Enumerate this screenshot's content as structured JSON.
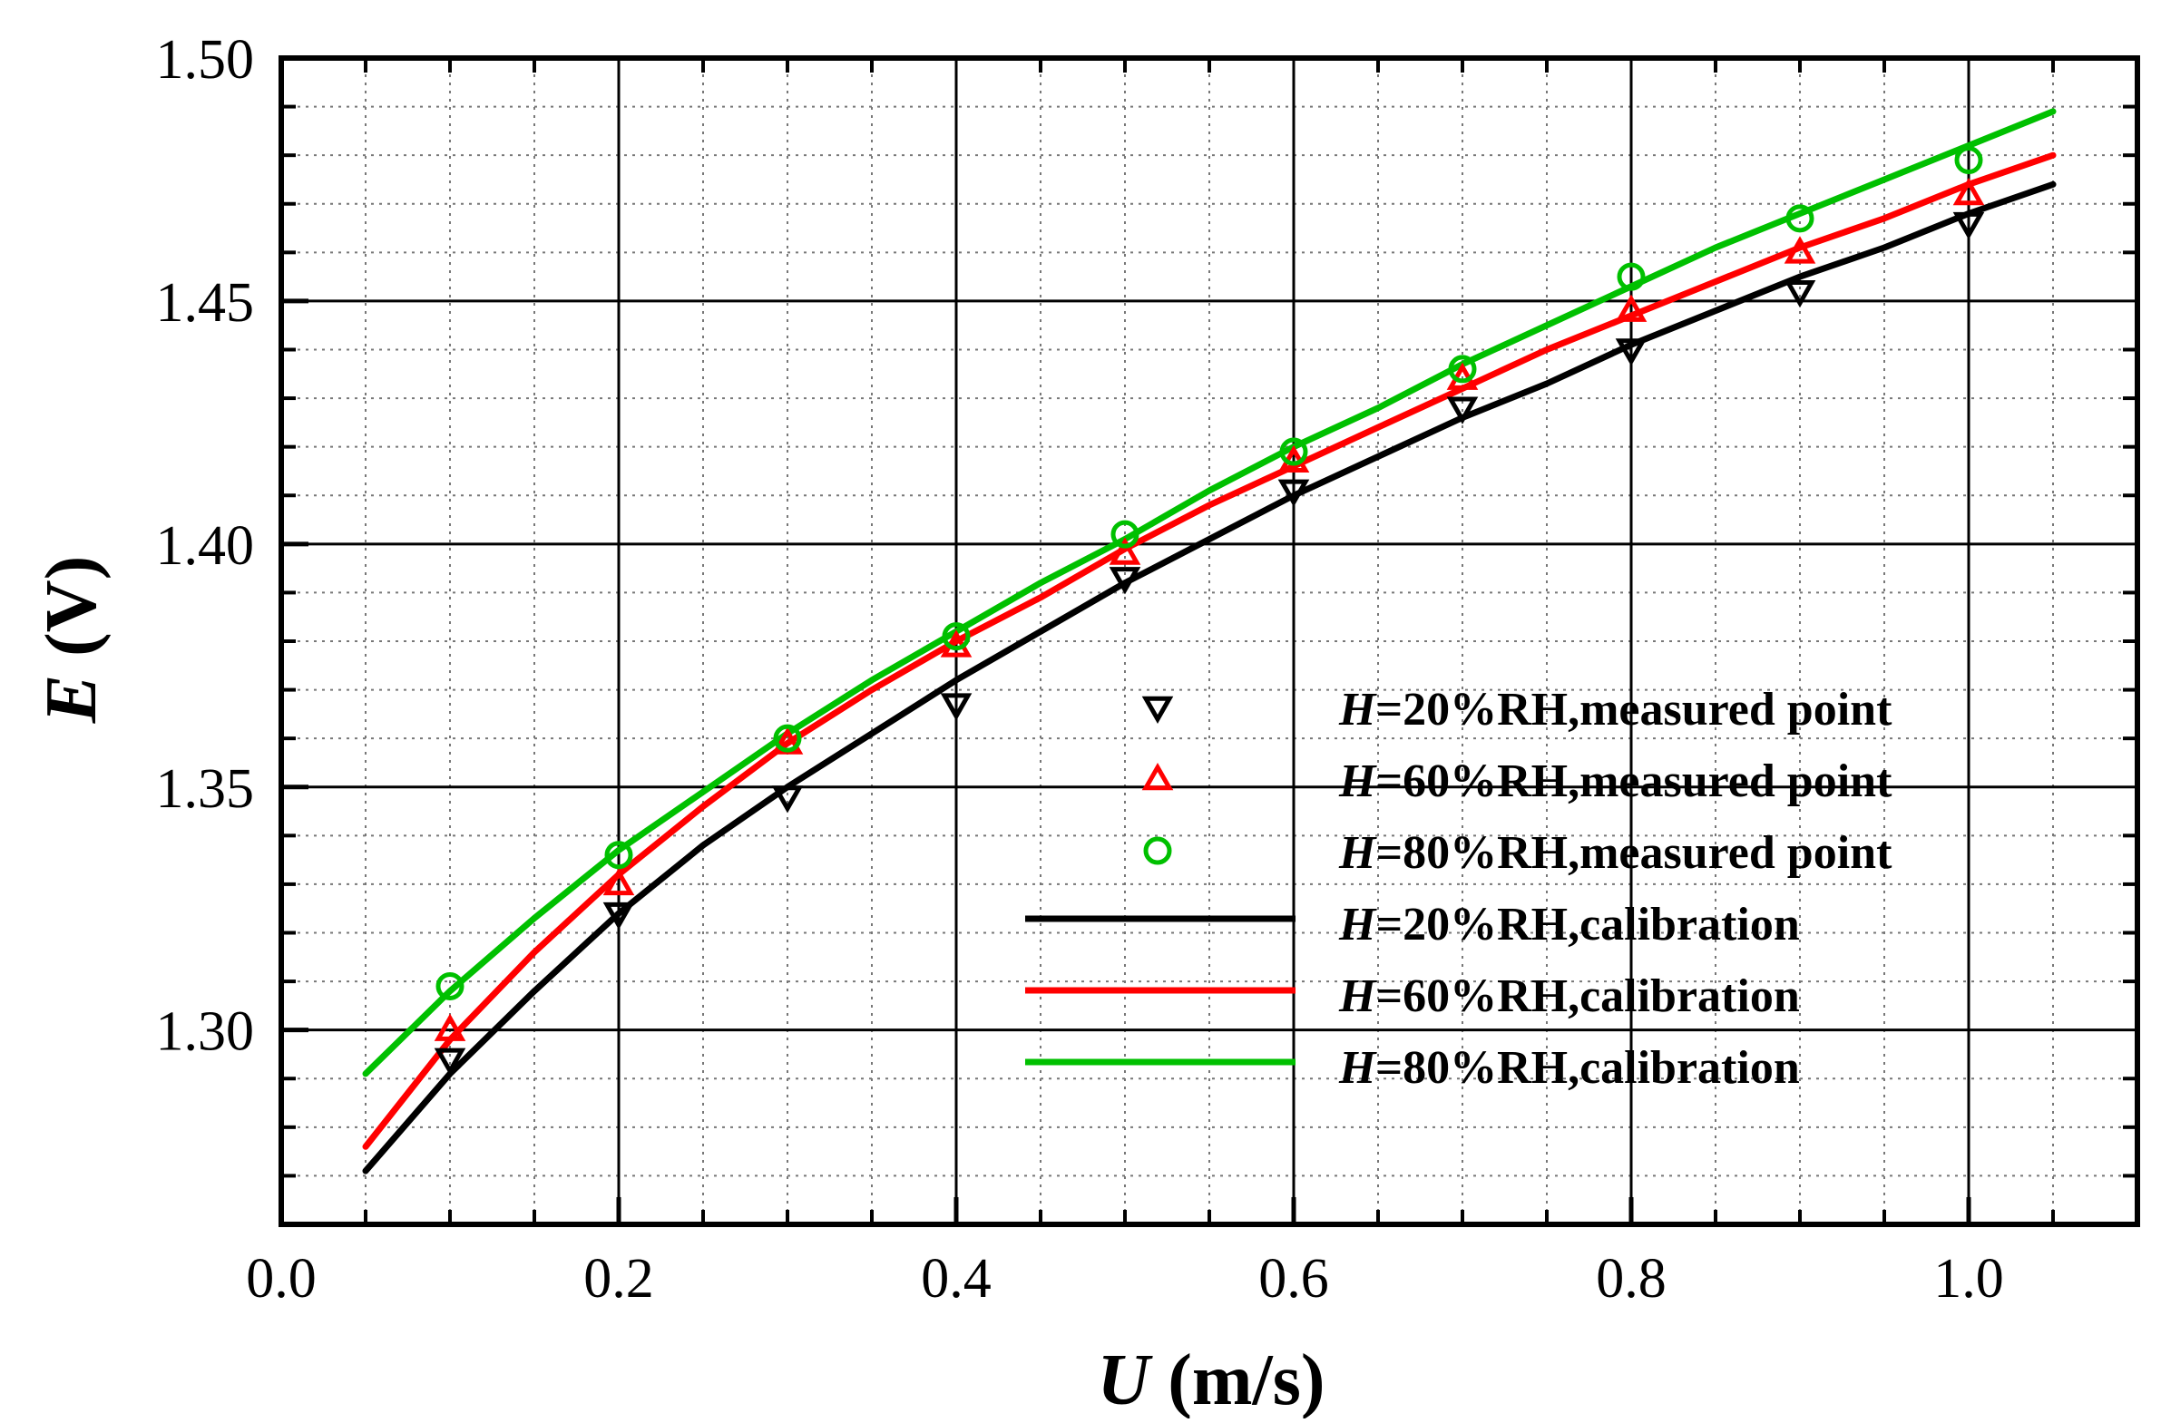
{
  "chart_data": {
    "type": "line",
    "title": "",
    "xlabel": {
      "italic": "U",
      "rest": " (m/s)"
    },
    "ylabel": {
      "italic": "E",
      "rest": " (V)"
    },
    "xlim": [
      0.0,
      1.1
    ],
    "ylim": [
      1.26,
      1.5
    ],
    "grid": true,
    "legend_position": "center-right",
    "x_ticks": [
      {
        "value": 0.0,
        "label": "0.0"
      },
      {
        "value": 0.2,
        "label": "0.2"
      },
      {
        "value": 0.4,
        "label": "0.4"
      },
      {
        "value": 0.6,
        "label": "0.6"
      },
      {
        "value": 0.8,
        "label": "0.8"
      },
      {
        "value": 1.0,
        "label": "1.0"
      }
    ],
    "y_ticks": [
      {
        "value": 1.3,
        "label": "1.30"
      },
      {
        "value": 1.35,
        "label": "1.35"
      },
      {
        "value": 1.4,
        "label": "1.40"
      },
      {
        "value": 1.45,
        "label": "1.45"
      },
      {
        "value": 1.5,
        "label": "1.50"
      }
    ],
    "x_minor_step": 0.05,
    "y_minor_step": 0.01,
    "scatter_series": [
      {
        "name": "H=20%RH,measured point",
        "legend_italic": "H",
        "legend_rest": "=20%RH,measured point",
        "marker": "triangle-down",
        "color": "#000000",
        "x": [
          0.1,
          0.2,
          0.3,
          0.4,
          0.5,
          0.6,
          0.7,
          0.8,
          0.9,
          1.0
        ],
        "y": [
          1.294,
          1.324,
          1.348,
          1.367,
          1.393,
          1.411,
          1.428,
          1.44,
          1.452,
          1.466
        ]
      },
      {
        "name": "H=60%RH,measured point",
        "legend_italic": "H",
        "legend_rest": "=60%RH,measured point",
        "marker": "triangle-up",
        "color": "#ff0000",
        "x": [
          0.1,
          0.2,
          0.3,
          0.4,
          0.5,
          0.6,
          0.7,
          0.8,
          0.9,
          1.0
        ],
        "y": [
          1.3,
          1.33,
          1.359,
          1.379,
          1.398,
          1.417,
          1.434,
          1.448,
          1.46,
          1.472
        ]
      },
      {
        "name": "H=80%RH,measured point",
        "legend_italic": "H",
        "legend_rest": "=80%RH,measured point",
        "marker": "circle",
        "color": "#00c000",
        "x": [
          0.1,
          0.2,
          0.3,
          0.4,
          0.5,
          0.6,
          0.7,
          0.8,
          0.9,
          1.0
        ],
        "y": [
          1.309,
          1.336,
          1.36,
          1.381,
          1.402,
          1.419,
          1.436,
          1.455,
          1.467,
          1.479
        ]
      }
    ],
    "line_series": [
      {
        "name": "H=20%RH,calibration",
        "legend_italic": "H",
        "legend_rest": "=20%RH,calibration",
        "color": "#000000",
        "x": [
          0.05,
          0.1,
          0.15,
          0.2,
          0.25,
          0.3,
          0.35,
          0.4,
          0.45,
          0.5,
          0.55,
          0.6,
          0.65,
          0.7,
          0.75,
          0.8,
          0.85,
          0.9,
          0.95,
          1.0,
          1.05
        ],
        "y": [
          1.271,
          1.291,
          1.308,
          1.324,
          1.338,
          1.35,
          1.361,
          1.372,
          1.382,
          1.392,
          1.401,
          1.41,
          1.418,
          1.426,
          1.433,
          1.441,
          1.448,
          1.455,
          1.461,
          1.468,
          1.474
        ]
      },
      {
        "name": "H=60%RH,calibration",
        "legend_italic": "H",
        "legend_rest": "=60%RH,calibration",
        "color": "#ff0000",
        "x": [
          0.05,
          0.1,
          0.15,
          0.2,
          0.25,
          0.3,
          0.35,
          0.4,
          0.45,
          0.5,
          0.55,
          0.6,
          0.65,
          0.7,
          0.75,
          0.8,
          0.85,
          0.9,
          0.95,
          1.0,
          1.05
        ],
        "y": [
          1.276,
          1.298,
          1.316,
          1.332,
          1.346,
          1.359,
          1.37,
          1.38,
          1.389,
          1.399,
          1.408,
          1.416,
          1.424,
          1.432,
          1.44,
          1.447,
          1.454,
          1.461,
          1.467,
          1.474,
          1.48
        ]
      },
      {
        "name": "H=80%RH,calibration",
        "legend_italic": "H",
        "legend_rest": "=80%RH,calibration",
        "color": "#00c000",
        "x": [
          0.05,
          0.1,
          0.15,
          0.2,
          0.25,
          0.3,
          0.35,
          0.4,
          0.45,
          0.5,
          0.55,
          0.6,
          0.65,
          0.7,
          0.75,
          0.8,
          0.85,
          0.9,
          0.95,
          1.0,
          1.05
        ],
        "y": [
          1.291,
          1.308,
          1.323,
          1.337,
          1.349,
          1.361,
          1.372,
          1.382,
          1.392,
          1.401,
          1.411,
          1.42,
          1.428,
          1.437,
          1.445,
          1.453,
          1.461,
          1.468,
          1.475,
          1.482,
          1.489
        ]
      }
    ]
  }
}
